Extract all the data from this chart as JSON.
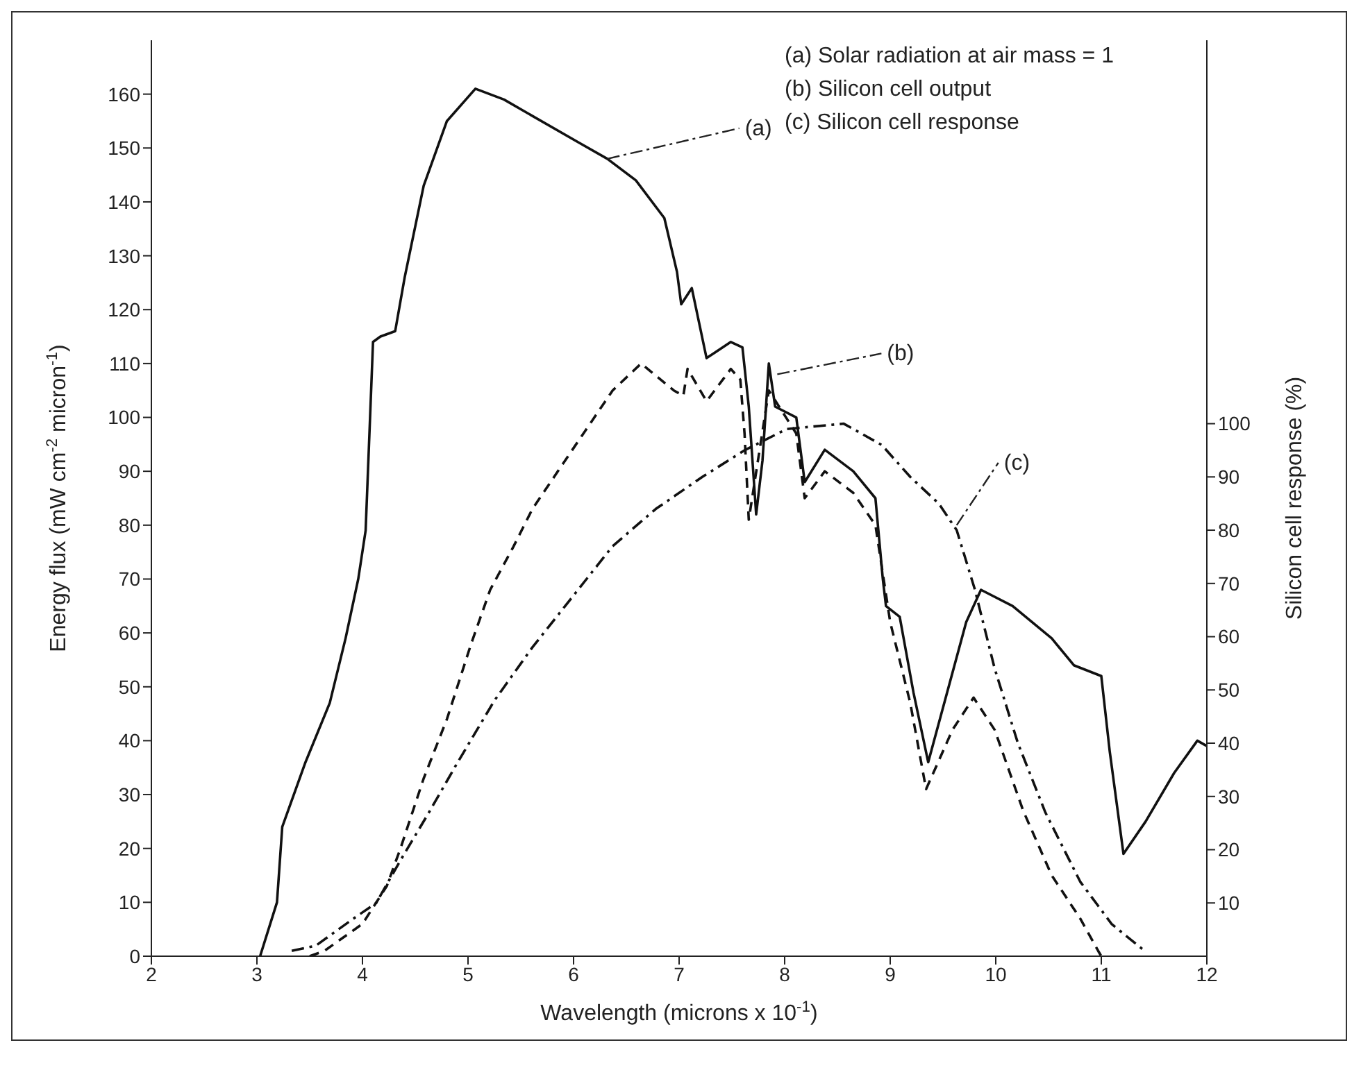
{
  "chart_data": {
    "type": "line",
    "xlabel": "Wavelength (microns x 10$^{-1}$)",
    "ylabel": "Energy flux (mW cm$^{-2}$ micron$^{-1}$)",
    "y2label": "Silicon cell response (%)",
    "xlim": [
      2,
      12
    ],
    "xticks": [
      2,
      3,
      4,
      5,
      6,
      7,
      8,
      9,
      10,
      11,
      12
    ],
    "ylim": [
      0,
      170
    ],
    "yticks": [
      0,
      10,
      20,
      30,
      40,
      50,
      60,
      70,
      80,
      90,
      100,
      110,
      120,
      130,
      140,
      150,
      160
    ],
    "y2lim": [
      0,
      172
    ],
    "y2ticks": [
      10,
      20,
      30,
      40,
      50,
      60,
      70,
      80,
      90,
      100
    ],
    "series": [
      {
        "color": "#111111",
        "line_style": "solid",
        "x": [
          3.03,
          3.19,
          3.24,
          3.46,
          3.69,
          3.84,
          3.96,
          4.03,
          4.1,
          4.17,
          4.31,
          4.4,
          4.58,
          4.8,
          5.07,
          5.34,
          6.05,
          6.32,
          6.59,
          6.86,
          6.98,
          7.02,
          7.12,
          7.26,
          7.49,
          7.6,
          7.66,
          7.73,
          7.79,
          7.85,
          7.91,
          8.11,
          8.19,
          8.38,
          8.65,
          8.86,
          8.93,
          8.96,
          9.09,
          9.22,
          9.36,
          9.54,
          9.72,
          9.86,
          10.16,
          10.53,
          10.74,
          11.0,
          11.08,
          11.21,
          11.42,
          11.69,
          11.91,
          12.0
        ],
        "values": [
          0,
          10,
          24,
          36,
          47,
          59,
          70,
          79,
          114,
          115,
          116,
          126,
          143,
          155,
          161,
          159,
          151,
          148,
          144,
          137,
          127,
          121,
          124,
          111,
          114,
          113,
          102,
          82,
          92,
          110,
          102,
          100,
          88,
          94,
          90,
          85,
          70,
          65,
          63,
          49,
          36,
          49,
          62,
          68,
          65,
          59,
          54,
          52,
          38,
          19,
          25,
          34,
          40,
          39
        ]
      },
      {
        "color": "#111111",
        "line_style": "dashed",
        "x": [
          3.5,
          3.64,
          4.0,
          4.23,
          4.36,
          4.58,
          4.8,
          5.03,
          5.21,
          5.43,
          5.61,
          5.92,
          6.37,
          6.64,
          6.95,
          7.04,
          7.08,
          7.17,
          7.26,
          7.49,
          7.58,
          7.62,
          7.66,
          7.85,
          8.11,
          8.19,
          8.38,
          8.65,
          8.86,
          9.0,
          9.19,
          9.34,
          9.59,
          9.79,
          9.99,
          10.26,
          10.53,
          10.8,
          10.97,
          11.0
        ],
        "values": [
          0,
          1,
          6,
          13,
          20,
          33,
          44,
          58,
          68,
          76,
          83,
          92,
          105,
          110,
          105,
          104,
          109,
          106,
          103,
          109,
          107,
          97,
          81,
          105,
          97,
          85,
          90,
          86,
          80,
          62,
          47,
          31,
          42,
          48,
          42,
          27,
          15,
          7,
          1,
          0
        ]
      },
      {
        "color": "#111111",
        "line_style": "dashdot",
        "axis": "y2",
        "x": [
          3.33,
          3.56,
          3.91,
          4.13,
          4.36,
          4.63,
          4.89,
          5.25,
          5.61,
          5.97,
          6.37,
          6.78,
          7.22,
          7.62,
          8.02,
          8.56,
          8.92,
          9.19,
          9.46,
          9.63,
          9.8,
          9.99,
          10.21,
          10.47,
          10.8,
          11.1,
          11.41
        ],
        "values": [
          1,
          2,
          7,
          10,
          18,
          27,
          36,
          48,
          58,
          67,
          77,
          84,
          90,
          95,
          99,
          100,
          96,
          90,
          85,
          80,
          69,
          54,
          40,
          27,
          14,
          6,
          1
        ]
      }
    ],
    "annotations": [
      "(a)  Solar radiation at air mass = 1",
      "(b)  Silicon cell output",
      "(c)  Silicon cell response",
      {
        "text": "(a)",
        "x": 6.32,
        "y": 148
      },
      {
        "text": "(b)",
        "x": 7.93,
        "y": 108
      },
      {
        "text": "(c)",
        "x": 9.63,
        "y": 80
      }
    ]
  }
}
